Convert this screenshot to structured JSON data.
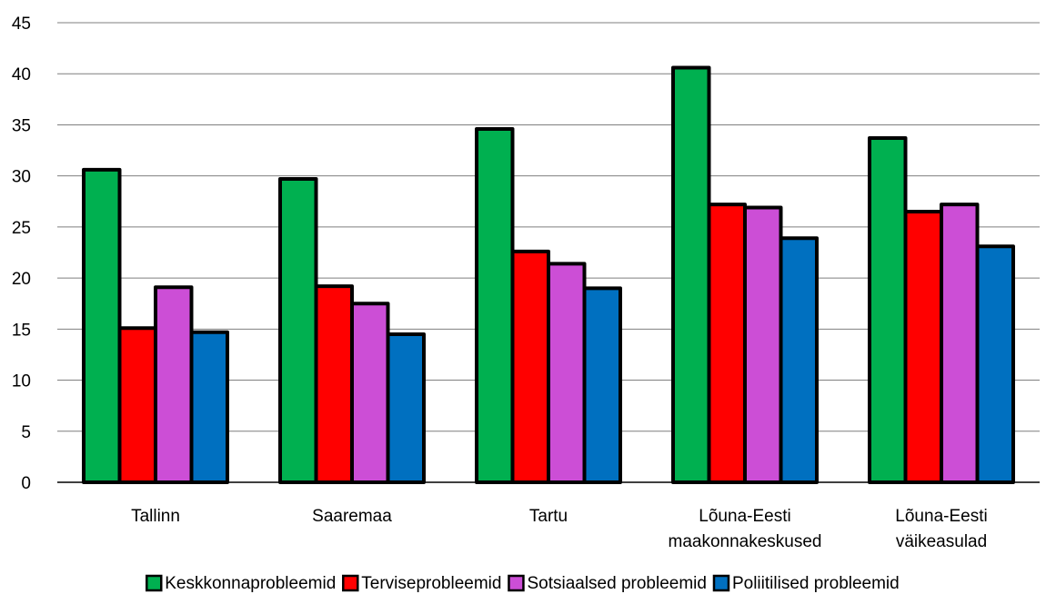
{
  "chart_data": {
    "type": "bar",
    "title": "",
    "xlabel": "",
    "ylabel": "",
    "ylim": [
      0,
      45
    ],
    "yticks": [
      0,
      5,
      10,
      15,
      20,
      25,
      30,
      35,
      40,
      45
    ],
    "grid": true,
    "legend_position": "bottom",
    "categories": [
      [
        "Tallinn"
      ],
      [
        "Saaremaa"
      ],
      [
        "Tartu"
      ],
      [
        "Lõuna-Eesti",
        "maakonnakeskused"
      ],
      [
        "Lõuna-Eesti",
        "väikeasulad"
      ]
    ],
    "series": [
      {
        "name": "Keskkonnaprobleemid",
        "color": "#00b050",
        "values": [
          30.6,
          29.7,
          34.6,
          40.6,
          33.7
        ]
      },
      {
        "name": "Terviseprobleemid",
        "color": "#ff0000",
        "values": [
          15.1,
          19.2,
          22.6,
          27.2,
          26.5
        ]
      },
      {
        "name": "Sotsiaalsed probleemid",
        "color": "#cc4ed6",
        "values": [
          19.1,
          17.5,
          21.4,
          26.9,
          27.2
        ]
      },
      {
        "name": "Poliitilised probleemid",
        "color": "#0070c0",
        "values": [
          14.7,
          14.5,
          19.0,
          23.9,
          23.1
        ]
      }
    ]
  }
}
